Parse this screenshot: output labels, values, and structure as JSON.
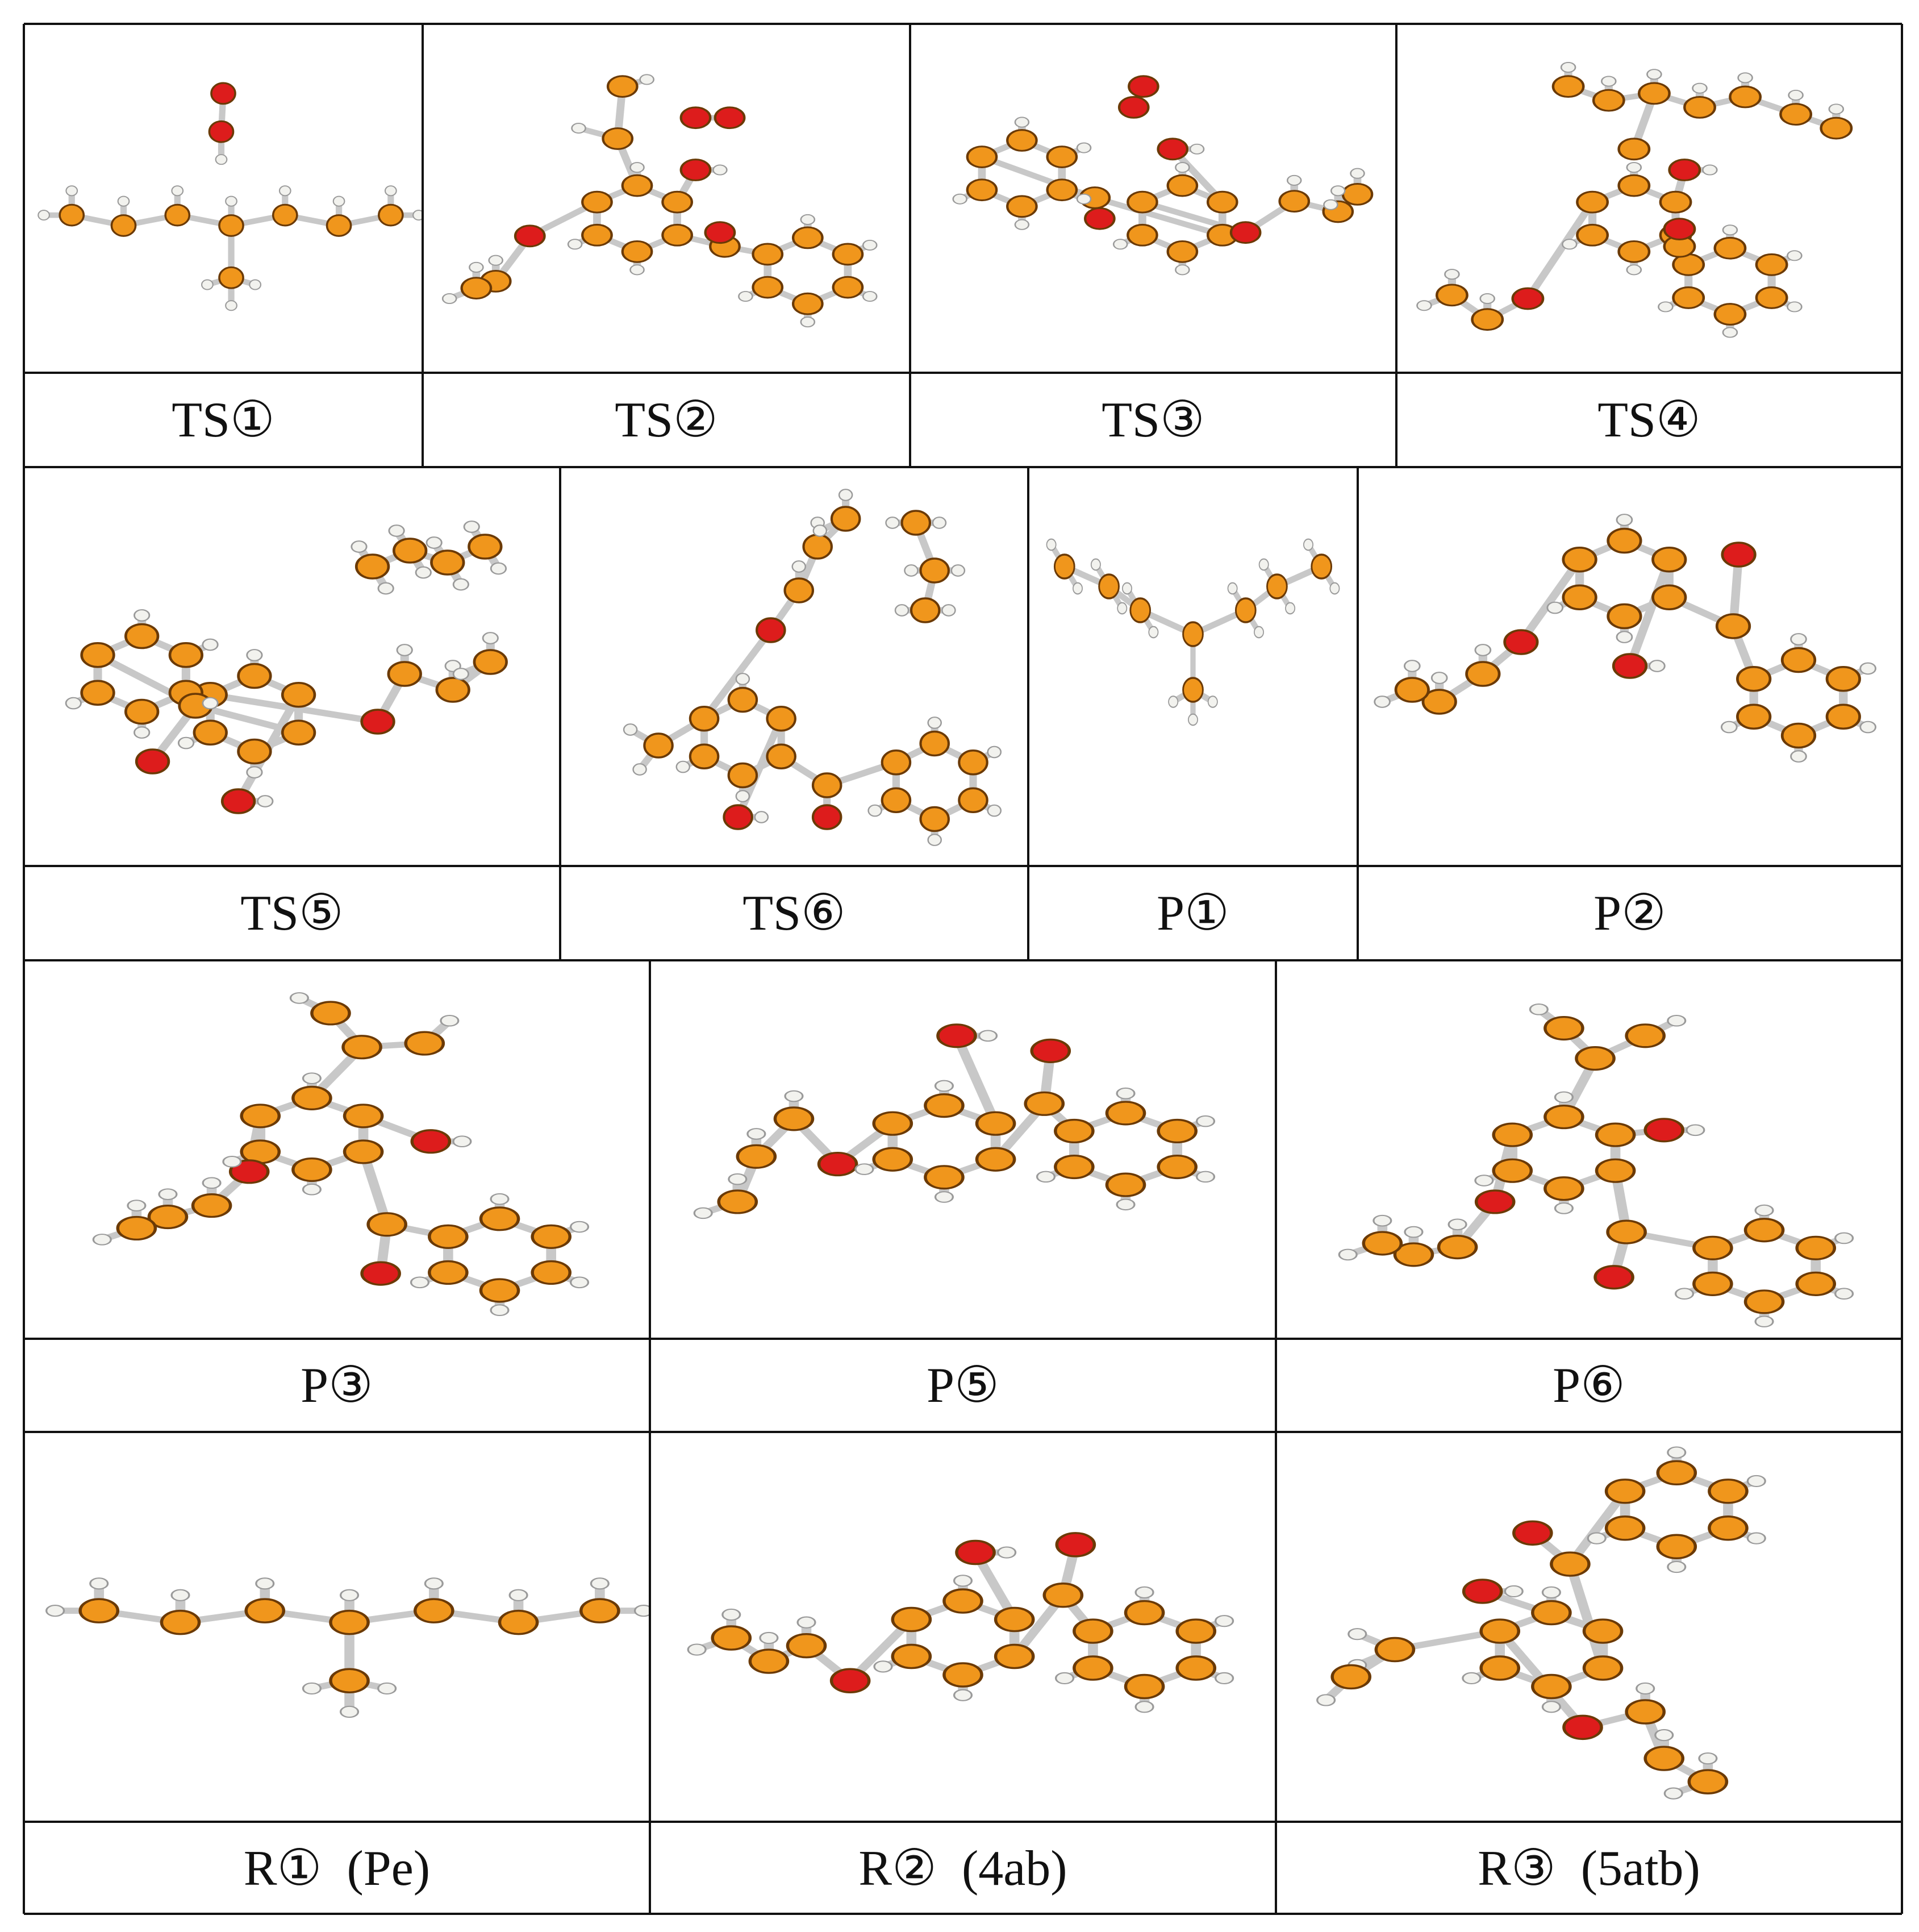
{
  "rows": [
    {
      "cells": [
        {
          "label": "TS①"
        },
        {
          "label": "TS②"
        },
        {
          "label": "TS③"
        },
        {
          "label": "TS④"
        }
      ]
    },
    {
      "cells": [
        {
          "label": "TS⑤"
        },
        {
          "label": "TS⑥"
        },
        {
          "label": "P①"
        },
        {
          "label": "P②"
        }
      ]
    },
    {
      "cells": [
        {
          "label": "P③"
        },
        {
          "label": "P⑤"
        },
        {
          "label": "P⑥"
        }
      ]
    },
    {
      "cells": [
        {
          "label": "R①  (Pe)"
        },
        {
          "label": "R②  (4ab)"
        },
        {
          "label": "R③  (5atb)"
        }
      ]
    }
  ],
  "colors": {
    "carbon": "#f0961c",
    "oxygen": "#dd1c1c",
    "hydrogen": "#f2f2ee",
    "bond": "#c8c8c8",
    "grid_line": "#111111"
  }
}
